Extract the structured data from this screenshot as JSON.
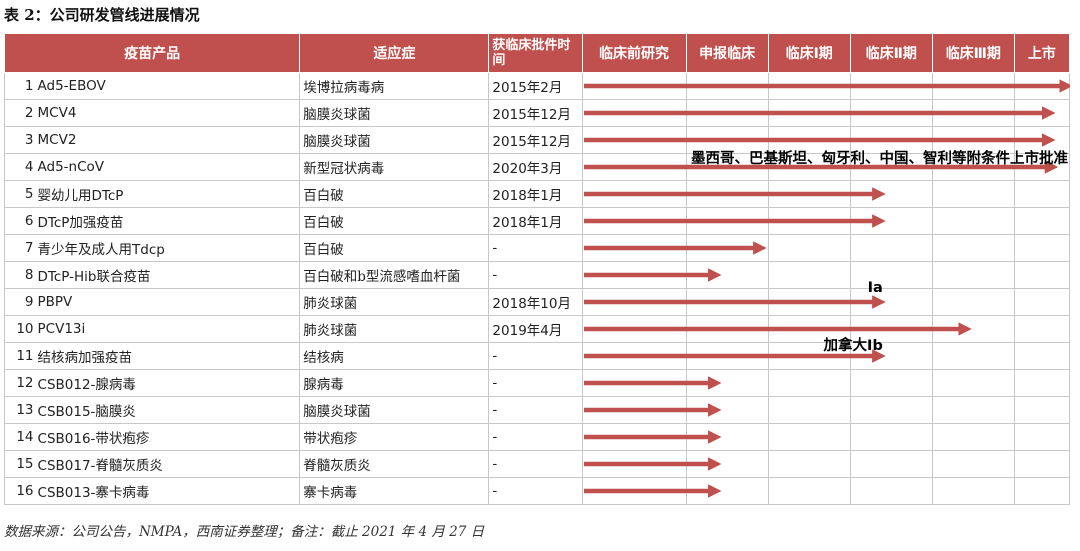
{
  "caption": "表 2：公司研发管线进展情况",
  "headers": {
    "product": "疫苗产品",
    "indication": "适应症",
    "time": "获临床批件时间",
    "stages": [
      "临床前研究",
      "申报临床",
      "临床Ⅰ期",
      "临床Ⅱ期",
      "临床Ⅲ期",
      "上市"
    ]
  },
  "colors": {
    "header_bg": "#c0504d",
    "arrow": "#c0504d",
    "grid": "#c8c8c8"
  },
  "rows": [
    {
      "num": "1",
      "name": "Ad5-EBOV",
      "indication": "埃博拉病毒病",
      "time": "2015年2月",
      "progress": 6.0
    },
    {
      "num": "2",
      "name": "MCV4",
      "indication": "脑膜炎球菌",
      "time": "2015年12月",
      "progress": 5.55
    },
    {
      "num": "3",
      "name": "MCV2",
      "indication": "脑膜炎球菌",
      "time": "2015年12月",
      "progress": 5.55
    },
    {
      "num": "4",
      "name": "Ad5-nCoV",
      "indication": "新型冠状病毒",
      "time": "2020年3月",
      "progress": 5.6,
      "note": "墨西哥、巴基斯坦、匈牙利、中国、智利等附条件上市批准"
    },
    {
      "num": "5",
      "name": "婴幼儿用DTcP",
      "indication": "百白破",
      "time": "2018年1月",
      "progress": 3.3
    },
    {
      "num": "6",
      "name": "DTcP加强疫苗",
      "indication": "百白破",
      "time": "2018年1月",
      "progress": 3.3
    },
    {
      "num": "7",
      "name": "青少年及成人用Tdcp",
      "indication": "百白破",
      "time": "-",
      "progress": 1.85
    },
    {
      "num": "8",
      "name": "DTcP-Hib联合疫苗",
      "indication": "百白破和b型流感嗜血杆菌",
      "time": "-",
      "progress": 1.3
    },
    {
      "num": "9",
      "name": "PBPV",
      "indication": "肺炎球菌",
      "time": "2018年10月",
      "progress": 3.3,
      "note": "Ⅰa"
    },
    {
      "num": "10",
      "name": "PCV13i",
      "indication": "肺炎球菌",
      "time": "2019年4月",
      "progress": 4.35
    },
    {
      "num": "11",
      "name": "结核病加强疫苗",
      "indication": "结核病",
      "time": "-",
      "progress": 3.3,
      "note": "加拿大Ib"
    },
    {
      "num": "12",
      "name": "CSB012-腺病毒",
      "indication": "腺病毒",
      "time": "-",
      "progress": 1.3
    },
    {
      "num": "13",
      "name": "CSB015-脑膜炎",
      "indication": "脑膜炎球菌",
      "time": "-",
      "progress": 1.3
    },
    {
      "num": "14",
      "name": "CSB016-带状疱疹",
      "indication": "带状疱疹",
      "time": "-",
      "progress": 1.3
    },
    {
      "num": "15",
      "name": "CSB017-脊髓灰质炎",
      "indication": "脊髓灰质炎",
      "time": "-",
      "progress": 1.3
    },
    {
      "num": "16",
      "name": "CSB013-寨卡病毒",
      "indication": "寨卡病毒",
      "time": "-",
      "progress": 1.3
    }
  ],
  "footer": "数据来源：公司公告，NMPA，西南证券整理；备注：截止 2021 年 4 月 27 日"
}
